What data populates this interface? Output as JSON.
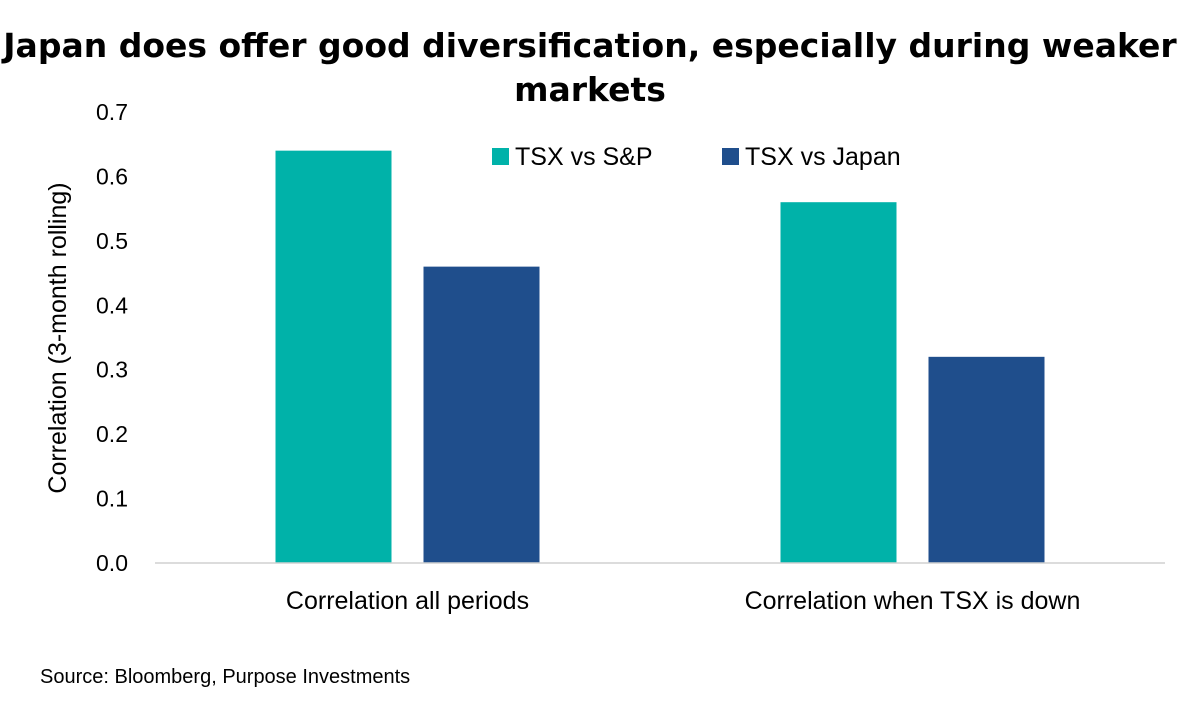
{
  "chart_data": {
    "type": "bar",
    "title": "Japan does offer good diversification, especially during weaker markets",
    "xlabel": "",
    "ylabel": "Correlation (3-month rolling)",
    "categories": [
      "Correlation all periods",
      "Correlation when TSX is down"
    ],
    "series": [
      {
        "name": "TSX vs S&P",
        "color": "#00B2A9",
        "values": [
          0.64,
          0.56
        ]
      },
      {
        "name": "TSX vs Japan",
        "color": "#1F4E8C",
        "values": [
          0.46,
          0.32
        ]
      }
    ],
    "ylim": [
      0,
      0.7
    ],
    "yticks": [
      "0.0",
      "0.1",
      "0.2",
      "0.3",
      "0.4",
      "0.5",
      "0.6",
      "0.7"
    ],
    "grid": false,
    "legend_position": "top-center"
  },
  "source": "Source: Bloomberg, Purpose Investments"
}
